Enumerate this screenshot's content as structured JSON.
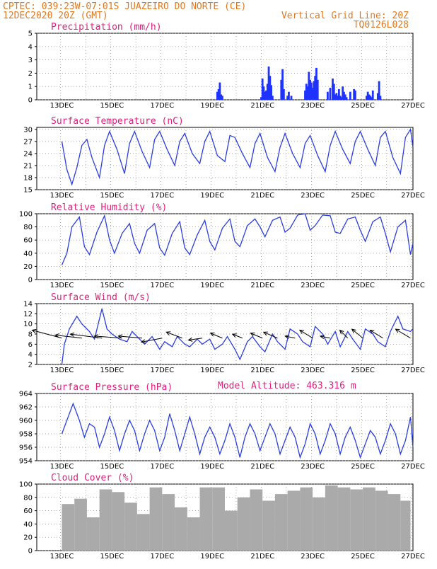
{
  "header": {
    "line1_left": "CPTEC:  039:23W-07:01S  JUAZEIRO DO NORTE (CE)",
    "line2_left": "12DEC2020 20Z (GMT)",
    "line2_right": "Vertical Grid Line: 20Z",
    "line3_right": "TQ0126L028"
  },
  "colors": {
    "header": "#e07820",
    "title": "#e0207a",
    "line": "#2a3de0",
    "bar": "#1f33ff",
    "cloud": "#aaaaaa"
  },
  "chart_data": [
    {
      "type": "bar",
      "title": "Precipitation (mm/h)",
      "ylim": [
        0,
        5
      ],
      "yticks": [
        0,
        1,
        2,
        3,
        4,
        5
      ],
      "xticks": [
        "13DEC",
        "15DEC",
        "17DEC",
        "19DEC",
        "21DEC",
        "23DEC",
        "25DEC",
        "27DEC"
      ],
      "series": [
        {
          "x": [
            6.2,
            6.25,
            6.3,
            6.35,
            6.4,
            7.95,
            8.0,
            8.05,
            8.1,
            8.15,
            8.2,
            8.25,
            8.3,
            8.35,
            8.4,
            8.75,
            8.8,
            8.85,
            9.0,
            9.05,
            9.15,
            9.7,
            9.75,
            9.8,
            9.85,
            9.9,
            9.95,
            10.0,
            10.05,
            10.1,
            10.15,
            10.2,
            10.6,
            10.7,
            10.8,
            10.85,
            10.9,
            10.95,
            11.0,
            11.05,
            11.1,
            11.15,
            11.2,
            11.25,
            11.3,
            11.35,
            11.5,
            11.65,
            11.7,
            12.15,
            12.2,
            12.25,
            12.3,
            12.35,
            12.4,
            12.6,
            12.65,
            12.7
          ],
          "y": [
            0.6,
            0.8,
            1.3,
            0.4,
            0.3,
            0.2,
            1.6,
            1.0,
            0.6,
            0.7,
            1.2,
            2.5,
            1.8,
            1.1,
            0.3,
            1.5,
            2.3,
            0.8,
            0.3,
            0.6,
            0.3,
            0.7,
            1.2,
            1.0,
            2.1,
            1.5,
            1.3,
            0.9,
            1.4,
            1.8,
            2.4,
            1.5,
            0.6,
            0.9,
            1.6,
            1.2,
            0.4,
            0.5,
            0.3,
            0.8,
            0.3,
            0.2,
            1.0,
            0.6,
            0.4,
            0.2,
            0.6,
            0.8,
            0.7,
            0.3,
            0.6,
            0.4,
            0.3,
            0.2,
            0.7,
            0.5,
            1.4,
            0.3
          ]
        }
      ]
    },
    {
      "type": "line",
      "title": "Surface Temperature (nC)",
      "ylim": [
        15,
        30.5
      ],
      "yticks": [
        15,
        18,
        21,
        24,
        27,
        30
      ],
      "xticks": [
        "13DEC",
        "15DEC",
        "17DEC",
        "19DEC",
        "21DEC",
        "23DEC",
        "25DEC",
        "27DEC"
      ],
      "series": [
        {
          "x": [
            0.0,
            0.2,
            0.4,
            0.6,
            0.8,
            1.0,
            1.2,
            1.5,
            1.7,
            1.9,
            2.2,
            2.5,
            2.7,
            2.9,
            3.2,
            3.5,
            3.7,
            3.9,
            4.2,
            4.5,
            4.7,
            4.9,
            5.2,
            5.5,
            5.7,
            5.9,
            6.2,
            6.5,
            6.7,
            6.9,
            7.2,
            7.5,
            7.7,
            7.9,
            8.2,
            8.5,
            8.7,
            8.9,
            9.2,
            9.5,
            9.7,
            9.9,
            10.2,
            10.5,
            10.7,
            10.9,
            11.2,
            11.5,
            11.7,
            11.9,
            12.2,
            12.5,
            12.7,
            12.9,
            13.2,
            13.5,
            13.7,
            13.9,
            14.0
          ],
          "y": [
            27.0,
            20.0,
            16.3,
            20.5,
            26.0,
            27.5,
            23.0,
            18.0,
            26.0,
            29.5,
            25.0,
            19.0,
            26.5,
            29.5,
            24.5,
            20.5,
            27.5,
            29.5,
            25.0,
            21.0,
            27.0,
            29.0,
            24.0,
            21.5,
            27.0,
            29.5,
            23.5,
            22.0,
            28.5,
            28.0,
            24.0,
            20.5,
            26.5,
            29.0,
            23.0,
            19.5,
            25.5,
            29.0,
            24.0,
            20.5,
            26.5,
            28.5,
            23.5,
            19.5,
            26.0,
            29.5,
            25.0,
            21.5,
            27.0,
            29.5,
            25.0,
            21.0,
            28.0,
            29.5,
            23.0,
            19.0,
            28.0,
            30.0,
            25.5
          ]
        }
      ]
    },
    {
      "type": "line",
      "title": "Relative Humidity (%)",
      "ylim": [
        0,
        100
      ],
      "yticks": [
        0,
        20,
        40,
        60,
        80,
        100
      ],
      "xticks": [
        "13DEC",
        "15DEC",
        "17DEC",
        "19DEC",
        "21DEC",
        "23DEC",
        "25DEC",
        "27DEC"
      ],
      "series": [
        {
          "x": [
            0.0,
            0.2,
            0.4,
            0.7,
            0.9,
            1.1,
            1.4,
            1.7,
            1.9,
            2.1,
            2.4,
            2.7,
            2.9,
            3.1,
            3.4,
            3.7,
            3.9,
            4.1,
            4.4,
            4.7,
            4.9,
            5.1,
            5.4,
            5.7,
            5.9,
            6.1,
            6.4,
            6.7,
            6.9,
            7.1,
            7.4,
            7.7,
            7.9,
            8.1,
            8.4,
            8.7,
            8.9,
            9.1,
            9.4,
            9.7,
            9.9,
            10.1,
            10.4,
            10.7,
            10.9,
            11.1,
            11.4,
            11.7,
            11.9,
            12.1,
            12.4,
            12.7,
            12.9,
            13.1,
            13.4,
            13.7,
            13.9,
            14.0
          ],
          "y": [
            22,
            40,
            80,
            95,
            50,
            38,
            72,
            97,
            60,
            40,
            70,
            85,
            55,
            40,
            75,
            85,
            48,
            37,
            70,
            88,
            48,
            38,
            68,
            90,
            58,
            45,
            78,
            92,
            58,
            50,
            82,
            92,
            80,
            65,
            90,
            95,
            72,
            78,
            98,
            100,
            75,
            82,
            98,
            97,
            72,
            70,
            92,
            95,
            75,
            58,
            88,
            95,
            70,
            42,
            80,
            90,
            38,
            55
          ]
        }
      ]
    },
    {
      "type": "line",
      "title": "Surface Wind (m/s)",
      "ylim": [
        2,
        14
      ],
      "yticks": [
        2,
        4,
        6,
        8,
        10,
        12,
        14
      ],
      "xticks": [
        "13DEC",
        "15DEC",
        "17DEC",
        "19DEC",
        "21DEC",
        "23DEC",
        "25DEC",
        "27DEC"
      ],
      "series": [
        {
          "x": [
            0.0,
            0.1,
            0.3,
            0.6,
            0.8,
            1.1,
            1.3,
            1.6,
            1.8,
            2.0,
            2.3,
            2.6,
            2.8,
            3.1,
            3.3,
            3.6,
            3.9,
            4.1,
            4.4,
            4.6,
            4.9,
            5.1,
            5.4,
            5.6,
            5.9,
            6.1,
            6.4,
            6.6,
            6.9,
            7.1,
            7.4,
            7.6,
            7.9,
            8.1,
            8.4,
            8.6,
            8.9,
            9.1,
            9.4,
            9.6,
            9.9,
            10.1,
            10.4,
            10.6,
            10.9,
            11.1,
            11.4,
            11.6,
            11.9,
            12.1,
            12.4,
            12.6,
            12.9,
            13.1,
            13.4,
            13.6,
            13.9,
            14.0
          ],
          "y": [
            2.0,
            6.0,
            9.0,
            11.5,
            10.0,
            8.5,
            7.0,
            13.0,
            9.0,
            8.0,
            7.0,
            6.5,
            8.5,
            7.0,
            6.0,
            7.5,
            5.0,
            6.5,
            5.5,
            7.5,
            6.0,
            5.5,
            7.0,
            6.0,
            7.0,
            5.0,
            6.0,
            7.5,
            5.0,
            3.0,
            6.5,
            7.5,
            5.5,
            4.5,
            8.0,
            6.5,
            5.0,
            9.0,
            8.0,
            6.5,
            5.5,
            9.5,
            8.0,
            6.0,
            8.5,
            5.5,
            8.5,
            7.0,
            5.0,
            9.0,
            8.0,
            6.5,
            5.5,
            8.5,
            11.5,
            9.0,
            8.5,
            9.0
          ]
        }
      ],
      "wind_vectors_u": [
        -3.0,
        -2.7,
        -3.2,
        -2.8,
        -2.4,
        -2.1,
        -1.6,
        -1.4,
        -1.2,
        -1.0,
        -1.2,
        -1.4,
        -1.0,
        -1.3,
        -1.0,
        -0.8,
        -1.1,
        -1.3,
        -1.5
      ],
      "wind_vectors_v": [
        0.8,
        0.3,
        0.4,
        0.2,
        0.2,
        -0.4,
        0.6,
        -0.2,
        0.5,
        0.4,
        0.5,
        0.6,
        0.2,
        0.8,
        0.2,
        0.8,
        0.9,
        0.8,
        0.9
      ],
      "wind_vectors_t": [
        0.0,
        0.8,
        1.6,
        2.4,
        3.2,
        4.0,
        4.8,
        5.6,
        6.4,
        7.2,
        8.0,
        8.6,
        9.3,
        10.0,
        10.7,
        11.4,
        12.0,
        12.8,
        13.9
      ]
    },
    {
      "type": "line",
      "title": "Surface Pressure (hPa)",
      "annotation": "Model Altitude: 463.316 m",
      "ylim": [
        954,
        964
      ],
      "yticks": [
        954,
        956,
        958,
        960,
        962,
        964
      ],
      "xticks": [
        "13DEC",
        "15DEC",
        "17DEC",
        "19DEC",
        "21DEC",
        "23DEC",
        "25DEC",
        "27DEC"
      ],
      "series": [
        {
          "x": [
            0.0,
            0.25,
            0.45,
            0.7,
            0.9,
            1.1,
            1.3,
            1.5,
            1.7,
            1.9,
            2.1,
            2.3,
            2.5,
            2.7,
            2.9,
            3.1,
            3.3,
            3.5,
            3.7,
            3.9,
            4.1,
            4.3,
            4.5,
            4.7,
            4.9,
            5.1,
            5.3,
            5.5,
            5.7,
            5.9,
            6.1,
            6.3,
            6.5,
            6.7,
            6.9,
            7.1,
            7.3,
            7.5,
            7.7,
            7.9,
            8.1,
            8.3,
            8.5,
            8.7,
            8.9,
            9.1,
            9.3,
            9.5,
            9.7,
            9.9,
            10.1,
            10.3,
            10.5,
            10.7,
            10.9,
            11.1,
            11.3,
            11.5,
            11.7,
            11.9,
            12.1,
            12.3,
            12.5,
            12.7,
            12.9,
            13.1,
            13.3,
            13.5,
            13.7,
            13.9,
            14.0
          ],
          "y": [
            958.0,
            960.5,
            962.5,
            960.0,
            957.5,
            959.5,
            959.0,
            956.0,
            958.0,
            960.5,
            958.5,
            955.5,
            958.0,
            960.0,
            958.5,
            955.5,
            958.0,
            960.0,
            958.5,
            955.5,
            957.5,
            961.0,
            958.5,
            955.5,
            958.0,
            960.5,
            958.0,
            955.0,
            957.5,
            959.0,
            957.5,
            955.0,
            957.0,
            959.5,
            957.5,
            954.5,
            957.5,
            959.5,
            958.0,
            955.5,
            957.5,
            959.5,
            958.0,
            955.0,
            957.0,
            959.0,
            957.5,
            954.5,
            956.5,
            959.5,
            958.0,
            955.0,
            957.0,
            959.5,
            958.0,
            955.0,
            957.5,
            959.0,
            957.0,
            954.5,
            956.5,
            958.5,
            957.5,
            955.0,
            957.0,
            959.5,
            958.0,
            955.0,
            957.0,
            960.5,
            956.0
          ]
        }
      ]
    },
    {
      "type": "bar",
      "title": "Cloud Cover (%)",
      "ylim": [
        0,
        100
      ],
      "yticks": [
        0,
        20,
        40,
        60,
        80,
        100
      ],
      "xticks": [
        "13DEC",
        "15DEC",
        "17DEC",
        "19DEC",
        "21DEC",
        "23DEC",
        "25DEC",
        "27DEC"
      ],
      "series": [
        {
          "x": [
            0.0,
            0.5,
            1.0,
            1.5,
            2.0,
            2.5,
            3.0,
            3.5,
            4.0,
            4.5,
            5.0,
            5.5,
            6.0,
            6.5,
            7.0,
            7.5,
            8.0,
            8.5,
            9.0,
            9.5,
            10.0,
            10.5,
            11.0,
            11.5,
            12.0,
            12.5,
            13.0,
            13.5,
            13.9
          ],
          "y": [
            70,
            78,
            50,
            92,
            88,
            72,
            55,
            95,
            85,
            65,
            50,
            95,
            95,
            60,
            80,
            92,
            75,
            85,
            90,
            95,
            80,
            98,
            95,
            92,
            95,
            90,
            85,
            75,
            10
          ]
        }
      ]
    }
  ]
}
